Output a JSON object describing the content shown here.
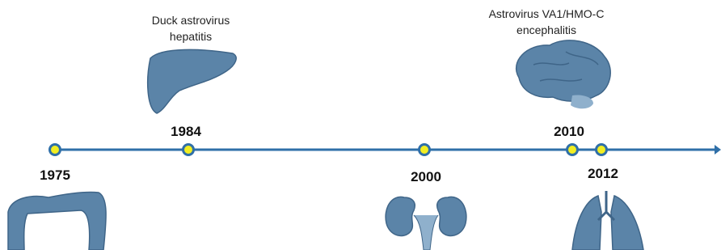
{
  "timeline": {
    "events": [
      {
        "year": "1975"
      },
      {
        "year": "1984",
        "caption": [
          "Duck astrovirus",
          "hepatitis"
        ]
      },
      {
        "year": "2000"
      },
      {
        "year": "2010",
        "caption": [
          "Astrovirus VA1/HMO-C",
          "encephalitis"
        ]
      },
      {
        "year": "2012"
      }
    ]
  }
}
